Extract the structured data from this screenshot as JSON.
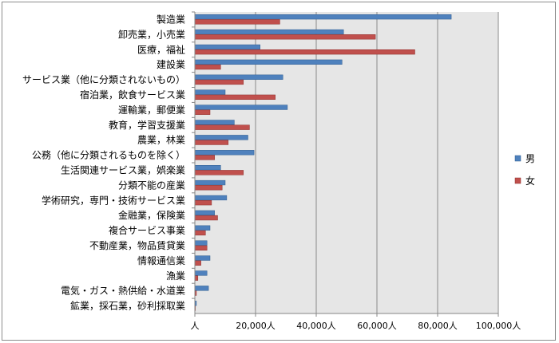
{
  "chart_data": {
    "type": "bar",
    "orientation": "horizontal",
    "categories": [
      "製造業",
      "卸売業，小売業",
      "医療，福祉",
      "建設業",
      "サービス業（他に分類されないもの）",
      "宿泊業，飲食サービス業",
      "運輸業，郵便業",
      "教育，学習支援業",
      "農業，林業",
      "公務（他に分類されるものを除く）",
      "生活関連サービス業，娯楽業",
      "分類不能の産業",
      "学術研究，専門・技術サービス業",
      "金融業，保険業",
      "複合サービス事業",
      "不動産業，物品賃貸業",
      "情報通信業",
      "漁業",
      "電気・ガス・熱供給・水道業",
      "鉱業，採石業，砂利採取業"
    ],
    "series": [
      {
        "name": "男",
        "color": "#4f81bd",
        "values": [
          84500,
          49000,
          21500,
          48500,
          29000,
          10000,
          30500,
          13000,
          17500,
          19500,
          8500,
          10000,
          10500,
          6500,
          5000,
          4000,
          5000,
          4000,
          4500,
          500
        ]
      },
      {
        "name": "女",
        "color": "#c0504d",
        "values": [
          28000,
          59500,
          72500,
          8500,
          16000,
          26500,
          5000,
          18000,
          11000,
          6500,
          16000,
          9000,
          5500,
          7500,
          3500,
          4000,
          2000,
          1000,
          500,
          100
        ]
      }
    ],
    "xlim": [
      0,
      100000
    ],
    "xticks": [
      "人",
      "20,000人",
      "40,000人",
      "60,000人",
      "80,000人",
      "100,000人"
    ],
    "legend_position": "right",
    "plot_background": "#e6e6e6",
    "gridlines": true
  }
}
